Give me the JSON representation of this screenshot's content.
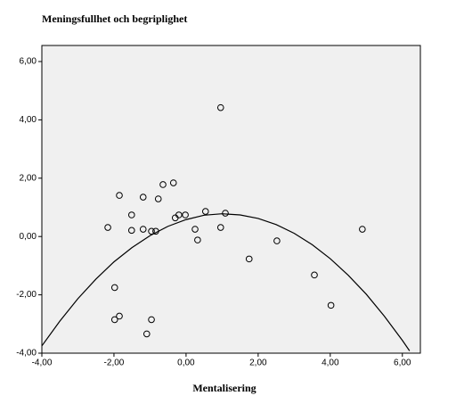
{
  "chart_data": {
    "type": "scatter",
    "title": "Meningsfullhet och begriplighet",
    "x_label": "Mentalisering",
    "xlim": [
      -4,
      6.5
    ],
    "ylim": [
      -4,
      6.55
    ],
    "xticks": [
      {
        "value": -4,
        "label": "-4,00"
      },
      {
        "value": -2,
        "label": "-2,00"
      },
      {
        "value": 0,
        "label": "0,00"
      },
      {
        "value": 2,
        "label": "2,00"
      },
      {
        "value": 4,
        "label": "4,00"
      },
      {
        "value": 6,
        "label": "6,00"
      }
    ],
    "yticks": [
      {
        "value": -4,
        "label": "-4,00"
      },
      {
        "value": -2,
        "label": "-2,00"
      },
      {
        "value": 0,
        "label": "0,00"
      },
      {
        "value": 2,
        "label": "2,00"
      },
      {
        "value": 4,
        "label": "4,00"
      },
      {
        "value": 6,
        "label": "6,00"
      }
    ],
    "background": "#f0f0f0",
    "series": [
      {
        "type": "scatter",
        "color": "#000000",
        "x": [
          0.96,
          -2.17,
          -1.85,
          -1.51,
          -1.51,
          -1.19,
          -1.19,
          -0.96,
          -0.84,
          -0.77,
          -0.64,
          -0.35,
          -0.3,
          -0.2,
          -0.02,
          0.25,
          0.32,
          0.54,
          0.96,
          1.09,
          1.75,
          2.52,
          3.56,
          4.02,
          4.89,
          -1.98,
          -1.98,
          -1.85,
          -0.96,
          -1.09
        ],
        "values": [
          4.42,
          0.31,
          1.41,
          0.74,
          0.21,
          1.35,
          0.25,
          0.18,
          0.18,
          1.29,
          1.78,
          1.84,
          0.64,
          0.74,
          0.74,
          0.25,
          -0.12,
          0.86,
          0.31,
          0.8,
          -0.77,
          -0.15,
          -1.32,
          -2.36,
          0.25,
          -1.75,
          -2.85,
          -2.73,
          -2.85,
          -3.34
        ]
      },
      {
        "type": "line",
        "color": "#000000",
        "x": [
          -4,
          -3.5,
          -3,
          -2.5,
          -2,
          -1.5,
          -1,
          -0.5,
          0,
          0.5,
          1,
          1.5,
          2,
          2.5,
          3,
          3.5,
          4,
          4.5,
          5,
          5.5,
          6,
          6.2
        ],
        "values": [
          -3.75,
          -2.9,
          -2.13,
          -1.46,
          -0.87,
          -0.38,
          0.03,
          0.35,
          0.58,
          0.73,
          0.78,
          0.74,
          0.62,
          0.41,
          0.11,
          -0.28,
          -0.76,
          -1.33,
          -1.98,
          -2.73,
          -3.56,
          -3.92
        ]
      }
    ]
  }
}
